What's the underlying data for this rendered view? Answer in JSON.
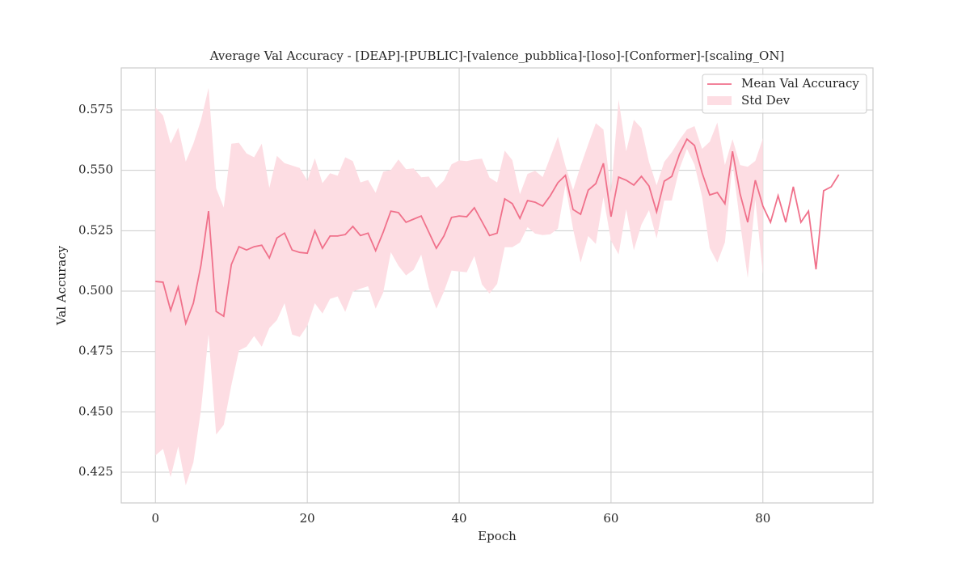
{
  "chart_data": {
    "type": "line",
    "title": "Average Val Accuracy - [DEAP]-[PUBLIC]-[valence_pubblica]-[loso]-[Conformer]-[scaling_ON]",
    "xlabel": "Epoch",
    "ylabel": "Val Accuracy",
    "x": [
      0,
      1,
      2,
      3,
      4,
      5,
      6,
      7,
      8,
      9,
      10,
      11,
      12,
      13,
      14,
      15,
      16,
      17,
      18,
      19,
      20,
      21,
      22,
      23,
      24,
      25,
      26,
      27,
      28,
      29,
      30,
      31,
      32,
      33,
      34,
      35,
      36,
      37,
      38,
      39,
      40,
      41,
      42,
      43,
      44,
      45,
      46,
      47,
      48,
      49,
      50,
      51,
      52,
      53,
      54,
      55,
      56,
      57,
      58,
      59,
      60,
      61,
      62,
      63,
      64,
      65,
      66,
      67,
      68,
      69,
      70,
      71,
      72,
      73,
      74,
      75,
      76,
      77,
      78,
      79,
      80,
      81,
      82,
      83,
      84,
      85,
      86,
      87,
      88,
      89,
      90
    ],
    "series": [
      {
        "name": "Mean Val Accuracy",
        "color": "#f0718b",
        "values": [
          0.504,
          0.5037,
          0.492,
          0.5017,
          0.4866,
          0.495,
          0.5107,
          0.5331,
          0.4916,
          0.4896,
          0.511,
          0.5184,
          0.517,
          0.5184,
          0.519,
          0.5137,
          0.522,
          0.524,
          0.517,
          0.516,
          0.5157,
          0.525,
          0.5177,
          0.5228,
          0.5228,
          0.5234,
          0.5268,
          0.523,
          0.524,
          0.5167,
          0.5244,
          0.5331,
          0.5325,
          0.5285,
          0.5298,
          0.5311,
          0.5244,
          0.5177,
          0.5228,
          0.5305,
          0.5311,
          0.5308,
          0.5345,
          0.5288,
          0.523,
          0.524,
          0.5382,
          0.5362,
          0.5301,
          0.5375,
          0.5368,
          0.5352,
          0.5395,
          0.5449,
          0.5479,
          0.5338,
          0.5318,
          0.5418,
          0.5445,
          0.5529,
          0.5308,
          0.5472,
          0.5459,
          0.5439,
          0.5475,
          0.5435,
          0.5328,
          0.5455,
          0.5475,
          0.5566,
          0.5629,
          0.5603,
          0.5489,
          0.5398,
          0.5408,
          0.5362,
          0.5579,
          0.5402,
          0.5285,
          0.5459,
          0.5352,
          0.5285,
          0.5395,
          0.5285,
          0.5432,
          0.5285,
          0.5331,
          0.509,
          0.5415,
          0.5432,
          0.5482
        ]
      },
      {
        "name": "Std Dev",
        "color": "#fddde3",
        "values": [
          0.072,
          0.069,
          0.069,
          0.066,
          0.067,
          0.066,
          0.06,
          0.051,
          0.051,
          0.045,
          0.05,
          0.043,
          0.04,
          0.037,
          0.042,
          0.029,
          0.034,
          0.029,
          0.035,
          0.035,
          0.03,
          0.03,
          0.027,
          0.026,
          0.025,
          0.032,
          0.027,
          0.022,
          0.022,
          0.024,
          0.025,
          0.017,
          0.022,
          0.022,
          0.021,
          0.016,
          0.023,
          0.025,
          0.023,
          0.022,
          0.023,
          0.023,
          0.02,
          0.026,
          0.024,
          0.021,
          0.02,
          0.018,
          0.01,
          0.011,
          0.013,
          0.012,
          0.016,
          0.019,
          0.004,
          0.008,
          0.02,
          0.019,
          0.025,
          0.014,
          0.01,
          0.032,
          0.012,
          0.027,
          0.02,
          0.01,
          0.011,
          0.008,
          0.01,
          0.006,
          0.004,
          0.008,
          0.01,
          0.022,
          0.029,
          0.016,
          0.005,
          0.012,
          0.023,
          0.008,
          0.028,
          null,
          null,
          null,
          null,
          null,
          null,
          null,
          null,
          null,
          null
        ]
      }
    ],
    "xlim": [
      -4.5,
      94.5
    ],
    "ylim": [
      0.4123,
      0.5924
    ],
    "xticks": [
      0,
      20,
      40,
      60,
      80
    ],
    "yticks": [
      0.425,
      {
        "value": 0.45,
        "label": "0.450"
      },
      0.475,
      {
        "value": 0.5,
        "label": "0.500"
      },
      0.525,
      {
        "value": 0.55,
        "label": "0.550"
      },
      0.575
    ],
    "grid": true,
    "legend": "upper right"
  }
}
